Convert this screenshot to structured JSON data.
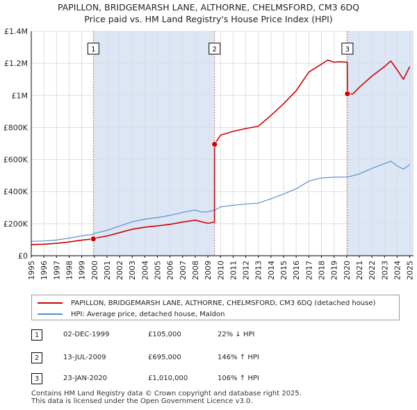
{
  "title": {
    "line1": "PAPILLON, BRIDGEMARSH LANE, ALTHORNE, CHELMSFORD, CM3 6DQ",
    "line2": "Price paid vs. HM Land Registry's House Price Index (HPI)"
  },
  "colors": {
    "price": "#cc0000",
    "hpi": "#5b8fd0",
    "shade": "#dde6f5",
    "grid": "#dddddd",
    "marker_line": "#dd6666"
  },
  "legend": {
    "price_label": "PAPILLON, BRIDGEMARSH LANE, ALTHORNE, CHELMSFORD, CM3 6DQ (detached house)",
    "hpi_label": "HPI: Average price, detached house, Maldon"
  },
  "transactions": [
    {
      "num": "1",
      "date": "02-DEC-1999",
      "price": "£105,000",
      "hpi": "22% ↓ HPI"
    },
    {
      "num": "2",
      "date": "13-JUL-2009",
      "price": "£695,000",
      "hpi": "146% ↑ HPI"
    },
    {
      "num": "3",
      "date": "23-JAN-2020",
      "price": "£1,010,000",
      "hpi": "106% ↑ HPI"
    }
  ],
  "footer": {
    "line1": "Contains HM Land Registry data © Crown copyright and database right 2025.",
    "line2": "This data is licensed under the Open Government Licence v3.0."
  },
  "chart_data": {
    "type": "line",
    "title": "Price paid vs. HM Land Registry's House Price Index (HPI)",
    "xlim": [
      1995,
      2025.3
    ],
    "ylim": [
      0,
      1400000
    ],
    "x_ticks": [
      1995,
      1996,
      1997,
      1998,
      1999,
      2000,
      2001,
      2002,
      2003,
      2004,
      2005,
      2006,
      2007,
      2008,
      2009,
      2010,
      2011,
      2012,
      2013,
      2014,
      2015,
      2016,
      2017,
      2018,
      2019,
      2020,
      2021,
      2022,
      2023,
      2024,
      2025
    ],
    "y_ticks": [
      {
        "value": 0,
        "label": "£0"
      },
      {
        "value": 200000,
        "label": "£200K"
      },
      {
        "value": 400000,
        "label": "£400K"
      },
      {
        "value": 600000,
        "label": "£600K"
      },
      {
        "value": 800000,
        "label": "£800K"
      },
      {
        "value": 1000000,
        "label": "£1M"
      },
      {
        "value": 1200000,
        "label": "£1.2M"
      },
      {
        "value": 1400000,
        "label": "£1.4M"
      }
    ],
    "grid": true,
    "sales": [
      {
        "label": "1",
        "x": 1999.92,
        "y": 105000
      },
      {
        "label": "2",
        "x": 2009.53,
        "y": 695000
      },
      {
        "label": "3",
        "x": 2020.06,
        "y": 1010000
      }
    ],
    "series": [
      {
        "name": "HPI: Average price, detached house, Maldon",
        "x": [
          1995,
          1996,
          1997,
          1998,
          1999,
          1999.92,
          2000,
          2001,
          2002,
          2003,
          2004,
          2005,
          2006,
          2007,
          2008,
          2008.5,
          2009,
          2009.53,
          2010,
          2011,
          2012,
          2013,
          2014,
          2015,
          2016,
          2017,
          2018,
          2019,
          2020,
          2020.06,
          2021,
          2022,
          2023,
          2023.5,
          2024,
          2024.5,
          2025
        ],
        "y": [
          90000,
          92000,
          98000,
          110000,
          124000,
          134000,
          140000,
          158000,
          185000,
          212000,
          228000,
          238000,
          252000,
          270000,
          285000,
          272000,
          275000,
          283000,
          305000,
          315000,
          322000,
          328000,
          355000,
          385000,
          418000,
          465000,
          485000,
          490000,
          490000,
          490000,
          510000,
          545000,
          575000,
          590000,
          560000,
          540000,
          570000
        ]
      },
      {
        "name": "PAPILLON, BRIDGEMARSH LANE, ALTHORNE, CHELMSFORD, CM3 6DQ (detached house)",
        "x": [
          1995,
          1996,
          1997,
          1998,
          1999,
          1999.92,
          2000,
          2001,
          2002,
          2003,
          2004,
          2005,
          2006,
          2007,
          2008,
          2008.5,
          2009,
          2009.52,
          2009.53,
          2010,
          2011,
          2012,
          2013,
          2014,
          2015,
          2016,
          2017,
          2018,
          2018.5,
          2019,
          2019.5,
          2020.05,
          2020.06,
          2020.5,
          2021,
          2022,
          2023,
          2023.5,
          2024,
          2024.5,
          2025
        ],
        "y": [
          70000,
          72000,
          77000,
          86000,
          97000,
          105000,
          109000,
          123000,
          144000,
          165000,
          178000,
          186000,
          196000,
          210000,
          222000,
          212000,
          202000,
          210000,
          695000,
          752000,
          776000,
          793000,
          808000,
          875000,
          948000,
          1030000,
          1145000,
          1195000,
          1220000,
          1207000,
          1210000,
          1207000,
          1010000,
          1010000,
          1050000,
          1120000,
          1180000,
          1215000,
          1160000,
          1100000,
          1180000
        ]
      }
    ]
  }
}
